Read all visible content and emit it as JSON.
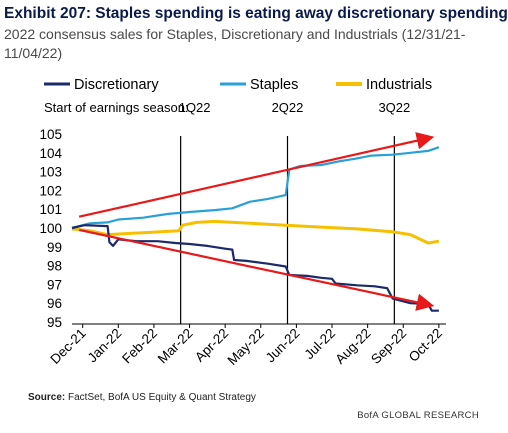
{
  "exhibit": {
    "title": "Exhibit 207: Staples spending is eating away discretionary spending",
    "subtitle": "2022 consensus sales for Staples, Discretionary and Industrials (12/31/21-11/04/22)"
  },
  "footer": {
    "source_label": "Source:",
    "source_text": "FactSet, BofA US Equity & Quant Strategy",
    "brand": "BofA GLOBAL RESEARCH"
  },
  "colors": {
    "discretionary": "#1b2a6b",
    "staples": "#2aa0d8",
    "industrials": "#f5c000",
    "arrow": "#e8191a"
  },
  "chart_data": {
    "type": "line",
    "title": "",
    "xlabel": "",
    "ylabel": "",
    "ylim": [
      95,
      105
    ],
    "yticks": [
      "95",
      "96",
      "97",
      "98",
      "99",
      "100",
      "101",
      "102",
      "103",
      "104",
      "105"
    ],
    "xticks": [
      "Dec-21",
      "Jan-22",
      "Feb-22",
      "Mar-22",
      "Apr-22",
      "May-22",
      "Jun-22",
      "Jul-22",
      "Aug-22",
      "Sep-22",
      "Oct-22"
    ],
    "legend_position": "top",
    "earnings_season_label": "Start of earnings season:",
    "earnings_markers": [
      {
        "label": "1Q22",
        "x": 3.05
      },
      {
        "label": "2Q22",
        "x": 6.05
      },
      {
        "label": "3Q22",
        "x": 9.05
      }
    ],
    "series": [
      {
        "name": "Discretionary",
        "points": [
          [
            0,
            100
          ],
          [
            0.35,
            100.15
          ],
          [
            1.0,
            100.1
          ],
          [
            1.05,
            99.25
          ],
          [
            1.15,
            99.05
          ],
          [
            1.3,
            99.4
          ],
          [
            1.8,
            99.3
          ],
          [
            2.4,
            99.3
          ],
          [
            2.9,
            99.2
          ],
          [
            3.3,
            99.15
          ],
          [
            3.8,
            99.05
          ],
          [
            4.3,
            98.9
          ],
          [
            4.5,
            98.85
          ],
          [
            4.55,
            98.3
          ],
          [
            4.9,
            98.25
          ],
          [
            5.5,
            98.1
          ],
          [
            6.0,
            97.95
          ],
          [
            6.1,
            97.5
          ],
          [
            6.6,
            97.45
          ],
          [
            7.0,
            97.35
          ],
          [
            7.3,
            97.3
          ],
          [
            7.4,
            97.05
          ],
          [
            8.0,
            96.95
          ],
          [
            8.5,
            96.9
          ],
          [
            8.85,
            96.8
          ],
          [
            9.0,
            96.25
          ],
          [
            9.5,
            96.0
          ],
          [
            10.0,
            95.95
          ],
          [
            10.1,
            95.6
          ],
          [
            10.3,
            95.6
          ]
        ]
      },
      {
        "name": "Staples",
        "points": [
          [
            0,
            100
          ],
          [
            0.5,
            100.25
          ],
          [
            1.0,
            100.3
          ],
          [
            1.3,
            100.45
          ],
          [
            2.0,
            100.55
          ],
          [
            2.7,
            100.75
          ],
          [
            3.0,
            100.8
          ],
          [
            3.3,
            100.85
          ],
          [
            4.0,
            100.95
          ],
          [
            4.5,
            101.05
          ],
          [
            5.0,
            101.4
          ],
          [
            5.5,
            101.55
          ],
          [
            6.0,
            101.75
          ],
          [
            6.1,
            103.1
          ],
          [
            6.4,
            103.3
          ],
          [
            7.0,
            103.35
          ],
          [
            7.5,
            103.55
          ],
          [
            8.0,
            103.7
          ],
          [
            8.4,
            103.85
          ],
          [
            9.0,
            103.9
          ],
          [
            9.5,
            104.0
          ],
          [
            10.0,
            104.1
          ],
          [
            10.3,
            104.3
          ]
        ]
      },
      {
        "name": "Industrials",
        "points": [
          [
            0,
            99.95
          ],
          [
            0.5,
            99.85
          ],
          [
            1.0,
            99.65
          ],
          [
            1.5,
            99.7
          ],
          [
            2.0,
            99.75
          ],
          [
            2.5,
            99.8
          ],
          [
            3.0,
            99.85
          ],
          [
            3.1,
            100.15
          ],
          [
            3.5,
            100.3
          ],
          [
            4.0,
            100.35
          ],
          [
            5.0,
            100.25
          ],
          [
            6.0,
            100.15
          ],
          [
            7.0,
            100.05
          ],
          [
            8.0,
            99.95
          ],
          [
            9.0,
            99.8
          ],
          [
            9.5,
            99.65
          ],
          [
            10.0,
            99.2
          ],
          [
            10.3,
            99.3
          ]
        ]
      }
    ],
    "annotations": [
      {
        "type": "arrow",
        "from": [
          0.2,
          100.6
        ],
        "to": [
          10.05,
          104.8
        ]
      },
      {
        "type": "arrow",
        "from": [
          0.2,
          99.9
        ],
        "to": [
          10.05,
          95.9
        ]
      }
    ]
  }
}
